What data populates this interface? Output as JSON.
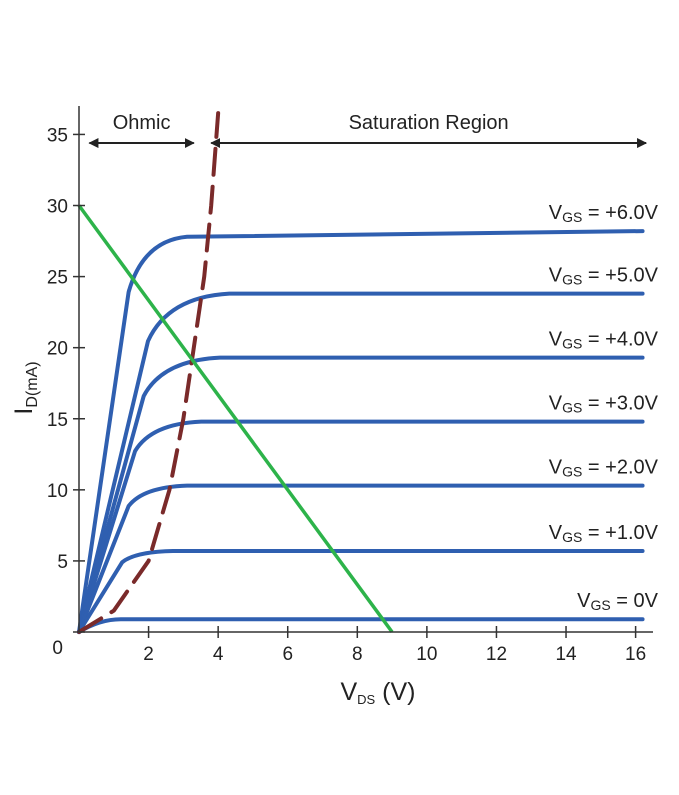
{
  "chart_data": {
    "type": "line",
    "xlabel": {
      "main": "V",
      "sub": "DS",
      "tail": " (V)"
    },
    "ylabel": {
      "main": "I",
      "sub": "D(mA)"
    },
    "xlim": [
      0,
      16.5
    ],
    "ylim": [
      0,
      37
    ],
    "xticks": [
      {
        "v": 2,
        "label": "2"
      },
      {
        "v": 4,
        "label": "4"
      },
      {
        "v": 6,
        "label": "6"
      },
      {
        "v": 8,
        "label": "8"
      },
      {
        "v": 10,
        "label": "10"
      },
      {
        "v": 12,
        "label": "12"
      },
      {
        "v": 14,
        "label": "14"
      },
      {
        "v": 16,
        "label": "16"
      }
    ],
    "yticks": [
      {
        "v": 0,
        "label": "0"
      },
      {
        "v": 5,
        "label": "5"
      },
      {
        "v": 10,
        "label": "10"
      },
      {
        "v": 15,
        "label": "15"
      },
      {
        "v": 20,
        "label": "20"
      },
      {
        "v": 25,
        "label": "25"
      },
      {
        "v": 30,
        "label": "30"
      },
      {
        "v": 35,
        "label": "35"
      }
    ],
    "grid": false,
    "series": [
      {
        "name": {
          "pre": "V",
          "sub": "GS",
          "post": " = +6.0V"
        },
        "id": "vgs-6",
        "knee": 2.3,
        "sat": 27.8,
        "end": 28.2,
        "label_v": 6
      },
      {
        "name": {
          "pre": "V",
          "sub": "GS",
          "post": " = +5.0V"
        },
        "id": "vgs-5",
        "knee": 3.2,
        "sat": 23.8,
        "end": 23.8,
        "label_v": 5
      },
      {
        "name": {
          "pre": "V",
          "sub": "GS",
          "post": " = +4.0V"
        },
        "id": "vgs-4",
        "knee": 3.0,
        "sat": 19.3,
        "end": 19.3,
        "label_v": 4
      },
      {
        "name": {
          "pre": "V",
          "sub": "GS",
          "post": " = +3.0V"
        },
        "id": "vgs-3",
        "knee": 2.6,
        "sat": 14.8,
        "end": 14.8,
        "label_v": 3
      },
      {
        "name": {
          "pre": "V",
          "sub": "GS",
          "post": " = +2.0V"
        },
        "id": "vgs-2",
        "knee": 2.3,
        "sat": 10.3,
        "end": 10.3,
        "label_v": 2
      },
      {
        "name": {
          "pre": "V",
          "sub": "GS",
          "post": " = +1.0V"
        },
        "id": "vgs-1",
        "knee": 2.0,
        "sat": 5.7,
        "end": 5.7,
        "label_v": 1
      },
      {
        "name": {
          "pre": "V",
          "sub": "GS",
          "post": " = 0V"
        },
        "id": "vgs-0",
        "knee": 1.0,
        "sat": 0.9,
        "end": 0.9,
        "label_v": 0
      }
    ],
    "boundary_dashed": {
      "points": [
        [
          0,
          0
        ],
        [
          1,
          1.5
        ],
        [
          2,
          5
        ],
        [
          2.6,
          10
        ],
        [
          3.0,
          15
        ],
        [
          3.3,
          20
        ],
        [
          3.6,
          25
        ],
        [
          3.8,
          30
        ],
        [
          4.0,
          36.5
        ]
      ],
      "color": "#7a2a2a"
    },
    "load_line": {
      "points": [
        [
          0,
          30
        ],
        [
          9,
          0
        ]
      ],
      "color": "#2db34a"
    },
    "annotations": {
      "ohmic": {
        "text": "Ohmic",
        "from": 0.3,
        "to": 3.3,
        "y": 35.8
      },
      "saturation": {
        "text": "Saturation Region",
        "from": 3.8,
        "to": 16.3,
        "y": 35.8
      }
    },
    "colors": {
      "curve": "#2f5fb0",
      "axis": "#333333",
      "text": "#222222"
    }
  }
}
